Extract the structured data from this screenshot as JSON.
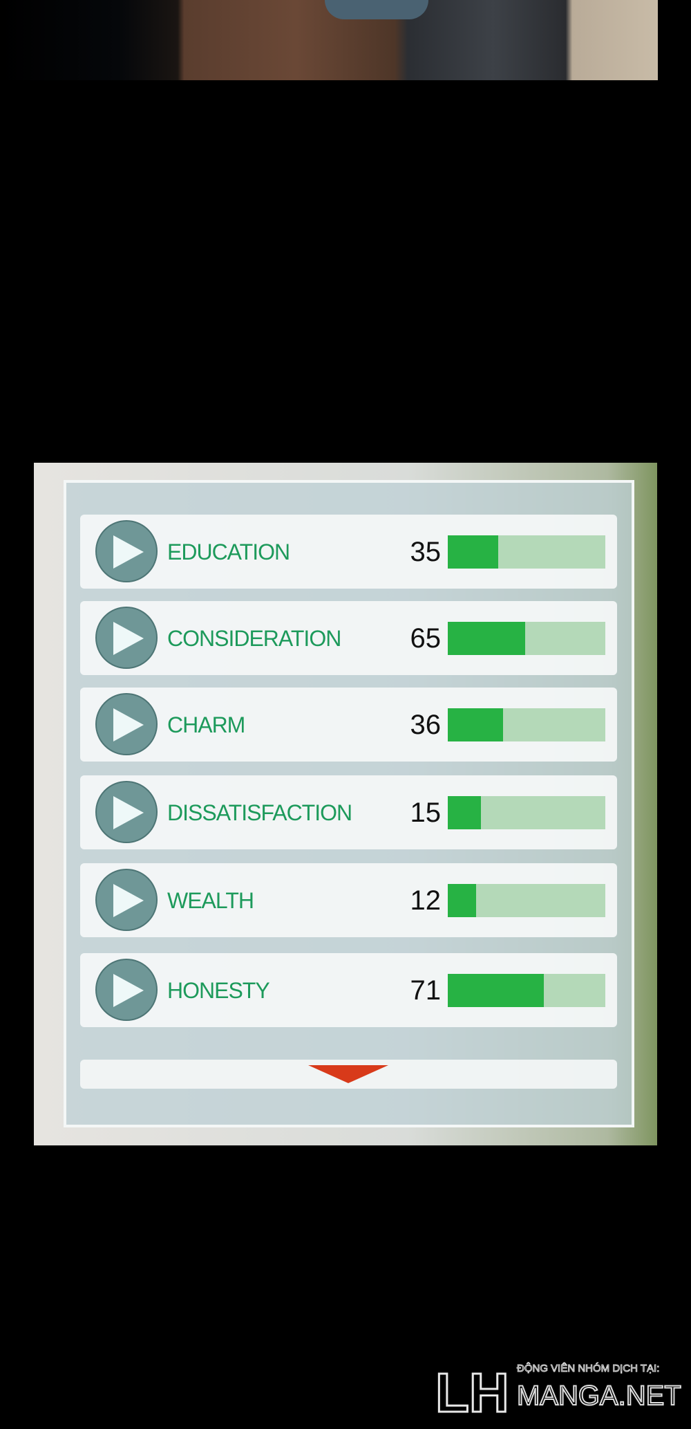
{
  "stats": [
    {
      "label": "EDUCATION",
      "value": "35",
      "fill": 0.32
    },
    {
      "label": "CONSIDERATION",
      "value": "65",
      "fill": 0.49
    },
    {
      "label": "CHARM",
      "value": "36",
      "fill": 0.35
    },
    {
      "label": "DISSATISFACTION",
      "value": "15",
      "fill": 0.21
    },
    {
      "label": "WEALTH",
      "value": "12",
      "fill": 0.18
    },
    {
      "label": "HONESTY",
      "value": "71",
      "fill": 0.61
    }
  ],
  "colors": {
    "label": "#1d9a5b",
    "bar_fill": "#27b244",
    "bar_track": "#b4d9b8",
    "chevron": "#d83a1a",
    "play_circle": "#6f9797"
  },
  "icons": {
    "row": "play-icon",
    "more": "chevron-down-icon"
  },
  "watermark": {
    "logo": "LH",
    "tagline": "ĐỘNG VIÊN NHÓM DỊCH TẠI:",
    "site": "MANGA.NET"
  }
}
